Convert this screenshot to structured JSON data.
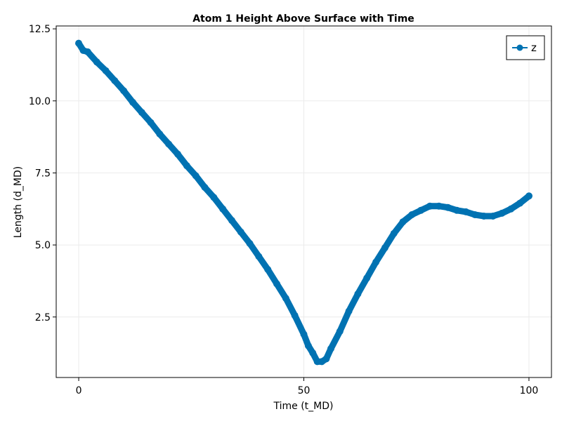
{
  "chart_data": {
    "type": "scatter",
    "title": "Atom 1 Height Above Surface with Time",
    "xlabel": "Time (t_MD)",
    "ylabel": "Length (d_MD)",
    "xlim": [
      -5,
      105
    ],
    "ylim": [
      0.4,
      12.6
    ],
    "xticks": [
      0,
      50,
      100
    ],
    "xtick_labels": [
      "0",
      "50",
      "100"
    ],
    "yticks": [
      2.5,
      5.0,
      7.5,
      10.0,
      12.5
    ],
    "ytick_labels": [
      "2.5",
      "5.0",
      "7.5",
      "10.0",
      "12.5"
    ],
    "grid": true,
    "legend_position": "top-right",
    "series": [
      {
        "name": "z",
        "color": "#0072b2",
        "x": [
          0,
          1,
          2,
          4,
          6,
          8,
          10,
          12,
          14,
          16,
          18,
          20,
          22,
          24,
          26,
          28,
          30,
          32,
          34,
          36,
          38,
          40,
          42,
          44,
          46,
          48,
          50,
          51,
          52,
          53,
          54,
          55,
          56,
          58,
          60,
          62,
          64,
          66,
          68,
          70,
          72,
          74,
          76,
          78,
          80,
          82,
          84,
          86,
          88,
          90,
          92,
          94,
          96,
          98,
          100
        ],
        "y": [
          12.0,
          11.75,
          11.7,
          11.35,
          11.05,
          10.7,
          10.35,
          9.95,
          9.6,
          9.25,
          8.85,
          8.5,
          8.15,
          7.75,
          7.4,
          7.0,
          6.65,
          6.25,
          5.85,
          5.45,
          5.05,
          4.6,
          4.15,
          3.65,
          3.15,
          2.55,
          1.9,
          1.5,
          1.25,
          0.95,
          0.95,
          1.05,
          1.4,
          2.0,
          2.7,
          3.3,
          3.85,
          4.4,
          4.9,
          5.4,
          5.8,
          6.05,
          6.2,
          6.35,
          6.35,
          6.3,
          6.2,
          6.15,
          6.05,
          6.0,
          6.0,
          6.1,
          6.25,
          6.45,
          6.7
        ]
      }
    ]
  }
}
